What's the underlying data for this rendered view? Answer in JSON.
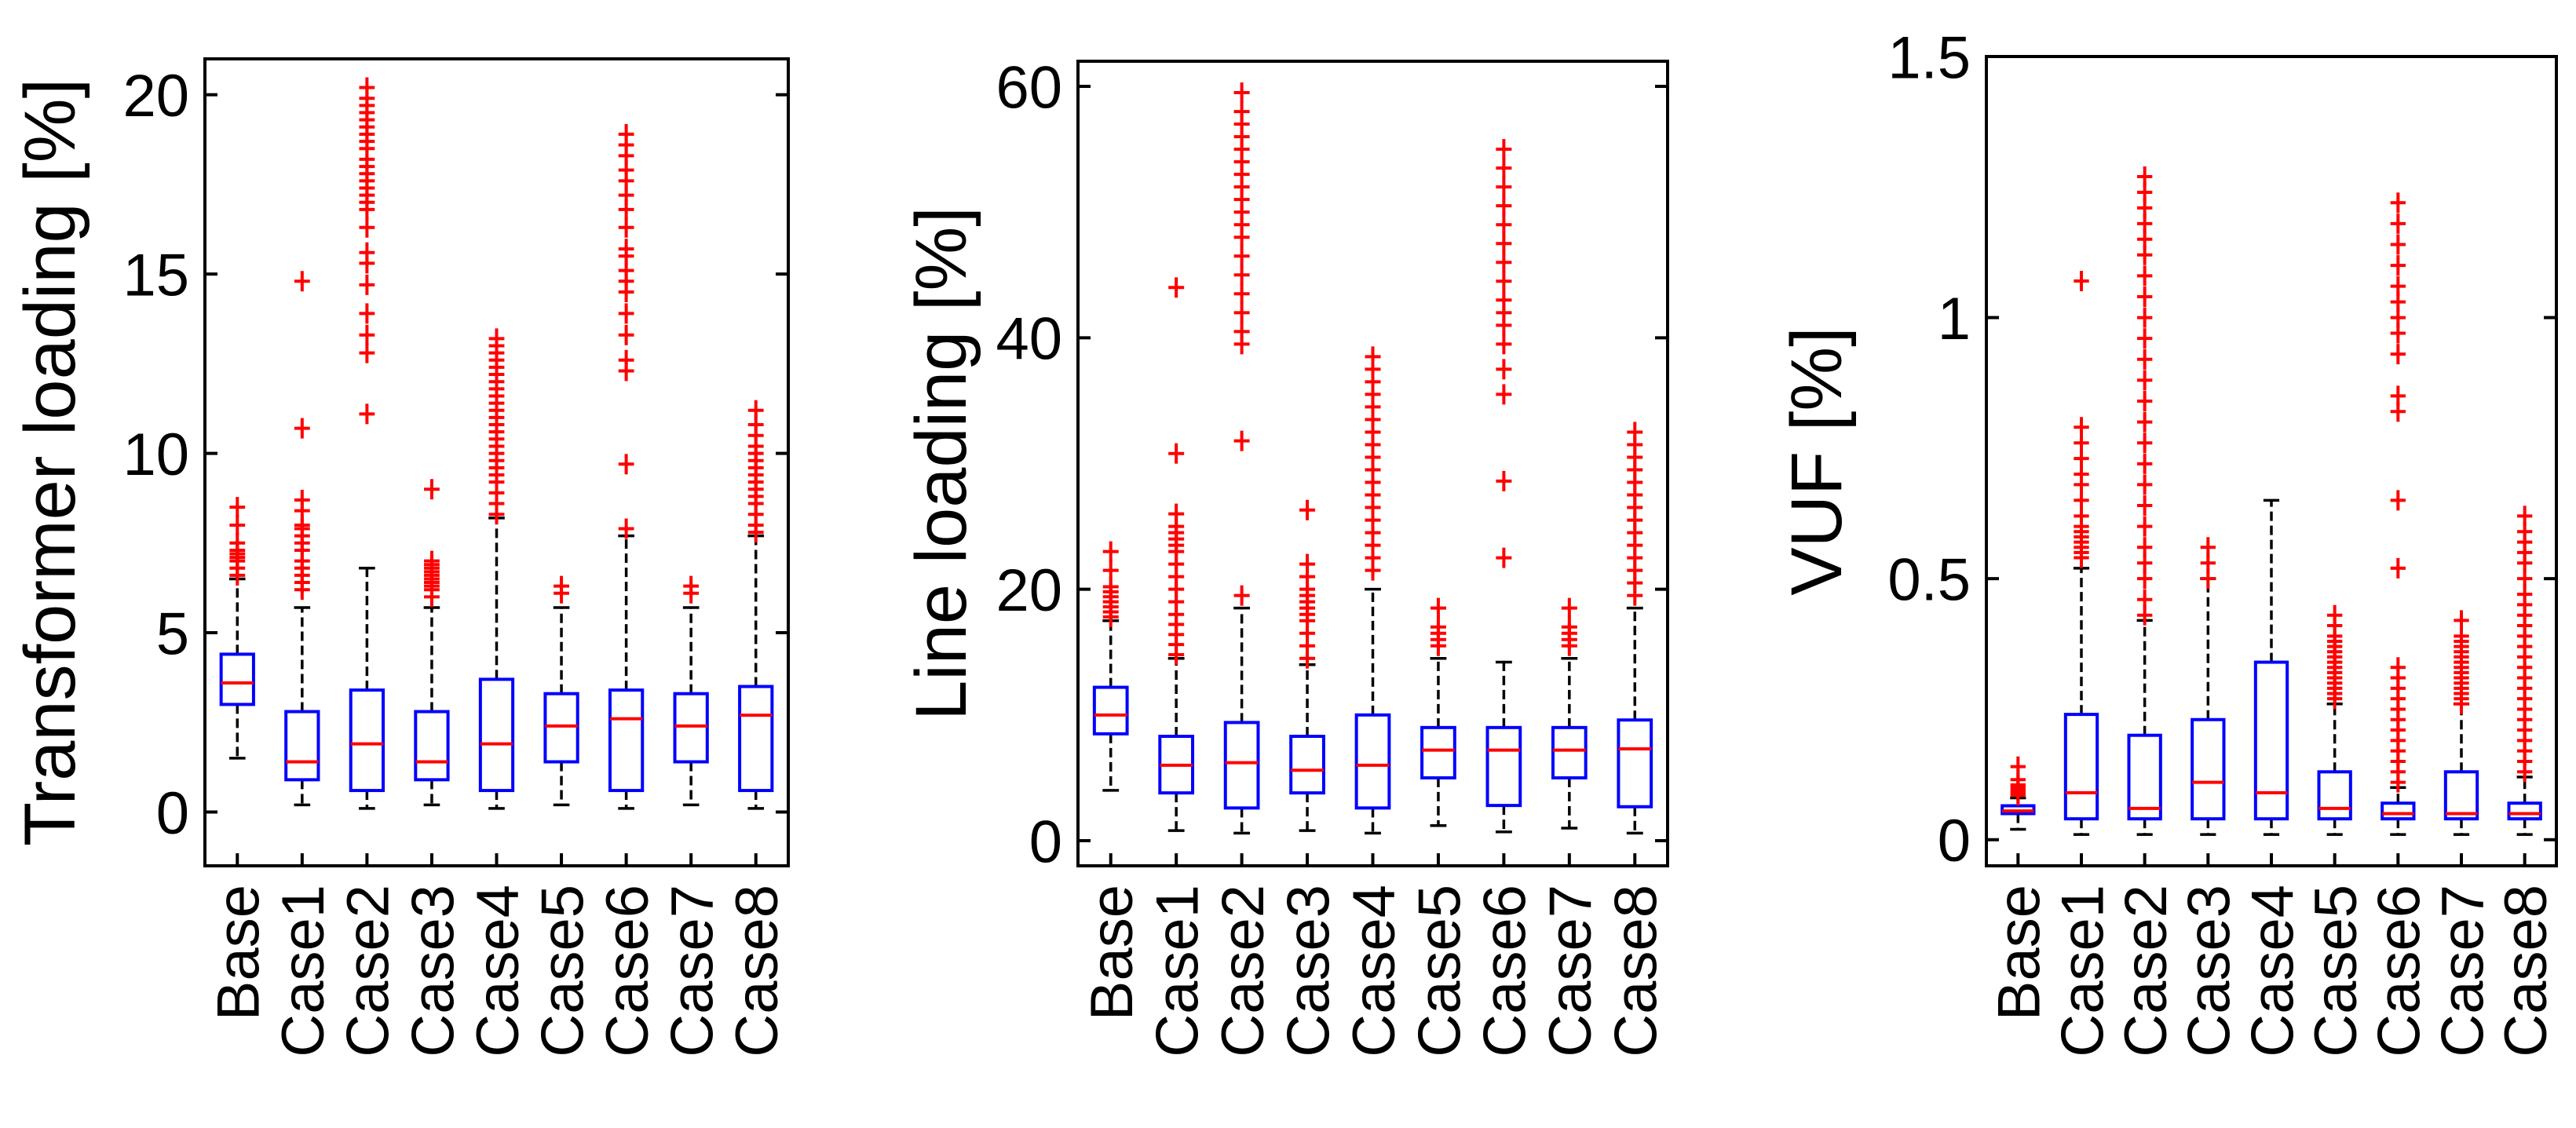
{
  "colors": {
    "box": "#0000ff",
    "median": "#ff0000",
    "outlier": "#ff0000",
    "whisker": "#000000",
    "axis": "#000000"
  },
  "chart_data": [
    {
      "type": "box",
      "ylabel": "Transformer loading [%]",
      "ylim": [
        -1.5,
        21
      ],
      "yticks": [
        0,
        5,
        10,
        15,
        20
      ],
      "ytick_labels": [
        "0",
        "5",
        "10",
        "15",
        "20"
      ],
      "categories": [
        "Base",
        "Case1",
        "Case2",
        "Case3",
        "Case4",
        "Case5",
        "Case6",
        "Case7",
        "Case8"
      ],
      "boxes": [
        {
          "whisker_low": 1.5,
          "q1": 3.0,
          "median": 3.6,
          "q3": 4.4,
          "whisker_high": 6.5
        },
        {
          "whisker_low": 0.2,
          "q1": 0.9,
          "median": 1.4,
          "q3": 2.8,
          "whisker_high": 5.7
        },
        {
          "whisker_low": 0.1,
          "q1": 0.6,
          "median": 1.9,
          "q3": 3.4,
          "whisker_high": 6.8
        },
        {
          "whisker_low": 0.2,
          "q1": 0.9,
          "median": 1.4,
          "q3": 2.8,
          "whisker_high": 5.7
        },
        {
          "whisker_low": 0.1,
          "q1": 0.6,
          "median": 1.9,
          "q3": 3.7,
          "whisker_high": 8.2
        },
        {
          "whisker_low": 0.2,
          "q1": 1.4,
          "median": 2.4,
          "q3": 3.3,
          "whisker_high": 5.7
        },
        {
          "whisker_low": 0.1,
          "q1": 0.6,
          "median": 2.6,
          "q3": 3.4,
          "whisker_high": 7.7
        },
        {
          "whisker_low": 0.2,
          "q1": 1.4,
          "median": 2.4,
          "q3": 3.3,
          "whisker_high": 5.7
        },
        {
          "whisker_low": 0.1,
          "q1": 0.6,
          "median": 2.7,
          "q3": 3.5,
          "whisker_high": 7.7
        }
      ],
      "outliers": [
        [
          6.6,
          6.8,
          7.0,
          7.1,
          7.2,
          7.3,
          7.5,
          8.0,
          8.5
        ],
        [
          6.2,
          6.4,
          6.6,
          6.8,
          7.0,
          7.3,
          7.5,
          7.7,
          7.9,
          8.0,
          8.4,
          8.7,
          10.7,
          14.8
        ],
        [
          11.1,
          12.8,
          13.3,
          13.9,
          14.7,
          15.3,
          15.6,
          16.3,
          16.8,
          17.0,
          17.2,
          17.4,
          17.6,
          17.8,
          18.0,
          18.2,
          18.5,
          18.7,
          18.9,
          19.1,
          19.3,
          19.5,
          19.7,
          19.9,
          20.2
        ],
        [
          6.0,
          6.2,
          6.3,
          6.4,
          6.5,
          6.6,
          6.7,
          6.8,
          6.9,
          7.0,
          9.0
        ],
        [
          8.3,
          8.6,
          8.9,
          9.2,
          9.4,
          9.6,
          9.8,
          10.0,
          10.2,
          10.4,
          10.6,
          10.8,
          11.0,
          11.2,
          11.4,
          11.6,
          11.8,
          12.0,
          12.2,
          12.4,
          12.6,
          12.8,
          13.0,
          13.2
        ],
        [
          6.1,
          6.3
        ],
        [
          7.9,
          9.7,
          12.3,
          12.6,
          13.3,
          13.9,
          14.5,
          14.8,
          15.1,
          15.5,
          15.7,
          16.3,
          16.8,
          17.2,
          17.6,
          17.9,
          18.3,
          18.6,
          18.9
        ],
        [
          6.1,
          6.3
        ],
        [
          7.8,
          8.0,
          8.3,
          8.6,
          8.8,
          9.0,
          9.2,
          9.4,
          9.6,
          9.8,
          10.0,
          10.2,
          10.5,
          10.8,
          11.2
        ]
      ]
    },
    {
      "type": "box",
      "ylabel": "Line loading [%]",
      "ylim": [
        -2,
        62
      ],
      "yticks": [
        0,
        20,
        40,
        60
      ],
      "ytick_labels": [
        "0",
        "20",
        "40",
        "60"
      ],
      "categories": [
        "Base",
        "Case1",
        "Case2",
        "Case3",
        "Case4",
        "Case5",
        "Case6",
        "Case7",
        "Case8"
      ],
      "boxes": [
        {
          "whisker_low": 4.0,
          "q1": 8.5,
          "median": 10.0,
          "q3": 12.2,
          "whisker_high": 17.5
        },
        {
          "whisker_low": 0.8,
          "q1": 3.8,
          "median": 6.0,
          "q3": 8.3,
          "whisker_high": 14.5
        },
        {
          "whisker_low": 0.6,
          "q1": 2.6,
          "median": 6.2,
          "q3": 9.4,
          "whisker_high": 18.5
        },
        {
          "whisker_low": 0.8,
          "q1": 3.8,
          "median": 5.6,
          "q3": 8.3,
          "whisker_high": 14.0
        },
        {
          "whisker_low": 0.6,
          "q1": 2.6,
          "median": 6.0,
          "q3": 10.0,
          "whisker_high": 20.0
        },
        {
          "whisker_low": 1.2,
          "q1": 5.0,
          "median": 7.2,
          "q3": 9.0,
          "whisker_high": 14.5
        },
        {
          "whisker_low": 0.7,
          "q1": 2.8,
          "median": 7.2,
          "q3": 9.0,
          "whisker_high": 14.2
        },
        {
          "whisker_low": 1.0,
          "q1": 5.0,
          "median": 7.2,
          "q3": 9.0,
          "whisker_high": 14.5
        },
        {
          "whisker_low": 0.6,
          "q1": 2.7,
          "median": 7.3,
          "q3": 9.6,
          "whisker_high": 18.5
        }
      ],
      "outliers": [
        [
          17.8,
          18.2,
          18.6,
          19.0,
          19.4,
          19.8,
          20.2,
          21.5,
          23.0
        ],
        [
          14.8,
          15.6,
          16.4,
          17.2,
          18.0,
          19.0,
          20.0,
          21.0,
          22.0,
          23.0,
          23.5,
          24.0,
          24.5,
          25.0,
          26.0,
          30.8,
          44.0
        ],
        [
          19.5,
          31.8,
          39.5,
          40.5,
          42.0,
          43.5,
          45.0,
          46.5,
          48.0,
          49.0,
          50.0,
          51.0,
          52.0,
          53.0,
          54.0,
          55.0,
          56.0,
          57.0,
          58.0,
          59.5
        ],
        [
          14.5,
          15.5,
          16.5,
          17.5,
          18.0,
          18.5,
          19.0,
          19.5,
          20.0,
          21.0,
          22.0,
          26.3
        ],
        [
          21.5,
          22.5,
          23.5,
          24.5,
          25.5,
          26.5,
          27.5,
          28.5,
          29.5,
          30.5,
          31.5,
          32.5,
          33.5,
          34.5,
          35.5,
          36.5,
          37.5,
          38.5
        ],
        [
          15.5,
          16.0,
          16.5,
          17.0,
          18.5
        ],
        [
          22.5,
          28.6,
          35.5,
          37.5,
          39.5,
          41.0,
          42.0,
          43.0,
          44.5,
          46.0,
          47.5,
          49.0,
          50.5,
          52.0,
          53.5,
          55.0
        ],
        [
          15.5,
          16.0,
          16.5,
          17.0,
          18.5
        ],
        [
          19.5,
          20.5,
          21.5,
          22.5,
          23.5,
          24.5,
          25.5,
          26.5,
          27.5,
          28.5,
          29.5,
          30.5,
          31.5,
          32.5
        ]
      ]
    },
    {
      "type": "box",
      "ylabel": "VUF [%]",
      "ylim": [
        -0.05,
        1.5
      ],
      "yticks": [
        0,
        0.5,
        1,
        1.5
      ],
      "ytick_labels": [
        "0",
        "0.5",
        "1",
        "1.5"
      ],
      "categories": [
        "Base",
        "Case1",
        "Case2",
        "Case3",
        "Case4",
        "Case5",
        "Case6",
        "Case7",
        "Case8"
      ],
      "boxes": [
        {
          "whisker_low": 0.02,
          "q1": 0.05,
          "median": 0.055,
          "q3": 0.065,
          "whisker_high": 0.08
        },
        {
          "whisker_low": 0.01,
          "q1": 0.04,
          "median": 0.09,
          "q3": 0.24,
          "whisker_high": 0.52
        },
        {
          "whisker_low": 0.01,
          "q1": 0.04,
          "median": 0.06,
          "q3": 0.2,
          "whisker_high": 0.42
        },
        {
          "whisker_low": 0.01,
          "q1": 0.04,
          "median": 0.11,
          "q3": 0.23,
          "whisker_high": 0.5
        },
        {
          "whisker_low": 0.01,
          "q1": 0.04,
          "median": 0.09,
          "q3": 0.34,
          "whisker_high": 0.65
        },
        {
          "whisker_low": 0.01,
          "q1": 0.04,
          "median": 0.06,
          "q3": 0.13,
          "whisker_high": 0.26
        },
        {
          "whisker_low": 0.01,
          "q1": 0.04,
          "median": 0.05,
          "q3": 0.07,
          "whisker_high": 0.1
        },
        {
          "whisker_low": 0.01,
          "q1": 0.04,
          "median": 0.05,
          "q3": 0.13,
          "whisker_high": 0.26
        },
        {
          "whisker_low": 0.01,
          "q1": 0.04,
          "median": 0.05,
          "q3": 0.07,
          "whisker_high": 0.12
        }
      ],
      "outliers": [
        [
          0.085,
          0.09,
          0.095,
          0.1,
          0.105,
          0.115,
          0.14
        ],
        [
          0.54,
          0.55,
          0.56,
          0.57,
          0.58,
          0.59,
          0.6,
          0.62,
          0.65,
          0.68,
          0.7,
          0.73,
          0.76,
          0.79,
          1.07
        ],
        [
          0.43,
          0.46,
          0.5,
          0.53,
          0.56,
          0.6,
          0.64,
          0.68,
          0.72,
          0.76,
          0.8,
          0.84,
          0.88,
          0.92,
          0.96,
          1.0,
          1.04,
          1.08,
          1.12,
          1.15,
          1.18,
          1.21,
          1.24,
          1.27
        ],
        [
          0.5,
          0.53,
          0.56
        ],
        [],
        [
          0.27,
          0.28,
          0.29,
          0.3,
          0.31,
          0.32,
          0.33,
          0.34,
          0.35,
          0.36,
          0.37,
          0.38,
          0.39,
          0.41,
          0.43
        ],
        [
          0.11,
          0.13,
          0.15,
          0.17,
          0.19,
          0.21,
          0.23,
          0.25,
          0.27,
          0.29,
          0.31,
          0.33,
          0.52,
          0.65,
          0.82,
          0.85,
          0.93,
          0.97,
          1.0,
          1.03,
          1.06,
          1.1,
          1.14,
          1.18,
          1.22
        ],
        [
          0.26,
          0.27,
          0.28,
          0.29,
          0.3,
          0.31,
          0.32,
          0.33,
          0.34,
          0.35,
          0.36,
          0.37,
          0.38,
          0.39,
          0.42
        ],
        [
          0.13,
          0.15,
          0.17,
          0.19,
          0.21,
          0.23,
          0.25,
          0.27,
          0.29,
          0.31,
          0.33,
          0.35,
          0.37,
          0.39,
          0.41,
          0.43,
          0.45,
          0.47,
          0.5,
          0.53,
          0.55,
          0.57,
          0.59,
          0.62
        ]
      ]
    }
  ]
}
